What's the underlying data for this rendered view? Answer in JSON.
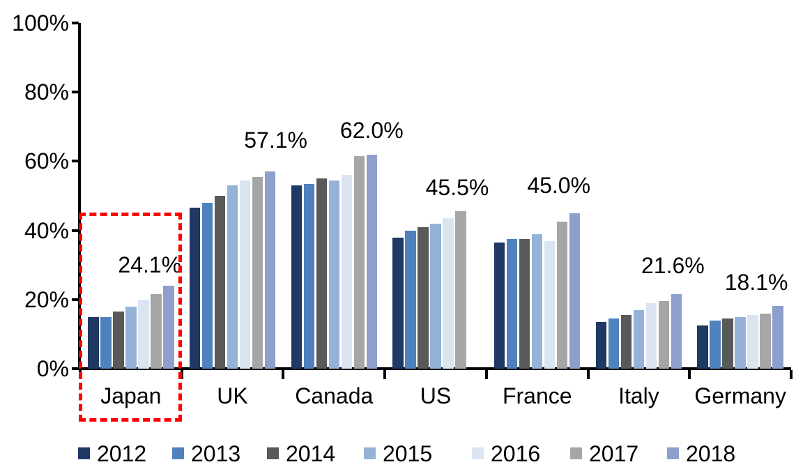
{
  "chart_data": {
    "type": "bar",
    "title": "",
    "xlabel": "",
    "ylabel": "",
    "categories": [
      "Japan",
      "UK",
      "Canada",
      "US",
      "France",
      "Italy",
      "Germany"
    ],
    "series": [
      {
        "name": "2012",
        "color": "#1F3864",
        "values": [
          15.0,
          46.5,
          53.0,
          38.0,
          36.5,
          13.5,
          12.5
        ]
      },
      {
        "name": "2013",
        "color": "#4F81BD",
        "values": [
          15.0,
          48.0,
          53.5,
          40.0,
          37.5,
          14.5,
          14.0
        ]
      },
      {
        "name": "2014",
        "color": "#595959",
        "values": [
          16.5,
          50.0,
          55.0,
          41.0,
          37.5,
          15.5,
          14.5
        ]
      },
      {
        "name": "2015",
        "color": "#95B3D7",
        "values": [
          18.0,
          53.0,
          54.5,
          42.0,
          39.0,
          17.0,
          15.0
        ]
      },
      {
        "name": "2016",
        "color": "#DBE5F1",
        "values": [
          20.0,
          54.5,
          56.0,
          43.5,
          37.0,
          19.0,
          15.5
        ]
      },
      {
        "name": "2017",
        "color": "#A6A6A6",
        "values": [
          21.5,
          55.5,
          61.5,
          45.5,
          42.5,
          19.5,
          16.0
        ]
      },
      {
        "name": "2018",
        "color": "#8E9FCC",
        "values": [
          24.1,
          57.1,
          62.0,
          null,
          45.0,
          21.6,
          18.1
        ]
      }
    ],
    "data_labels": [
      {
        "category": "Japan",
        "text": "24.1%"
      },
      {
        "category": "UK",
        "text": "57.1%"
      },
      {
        "category": "Canada",
        "text": "62.0%"
      },
      {
        "category": "US",
        "text": "45.5%"
      },
      {
        "category": "France",
        "text": "45.0%"
      },
      {
        "category": "Italy",
        "text": "21.6%"
      },
      {
        "category": "Germany",
        "text": "18.1%"
      }
    ],
    "y_axis": {
      "ticks": [
        "0%",
        "20%",
        "40%",
        "60%",
        "80%",
        "100%"
      ],
      "min": 0,
      "max": 100,
      "grid": false
    },
    "legend": {
      "position": "bottom",
      "entries": [
        "2012",
        "2013",
        "2014",
        "2015",
        "2016",
        "2017",
        "2018"
      ]
    },
    "annotation": {
      "type": "dashed-box",
      "color": "#FF0000",
      "category": "Japan"
    }
  }
}
